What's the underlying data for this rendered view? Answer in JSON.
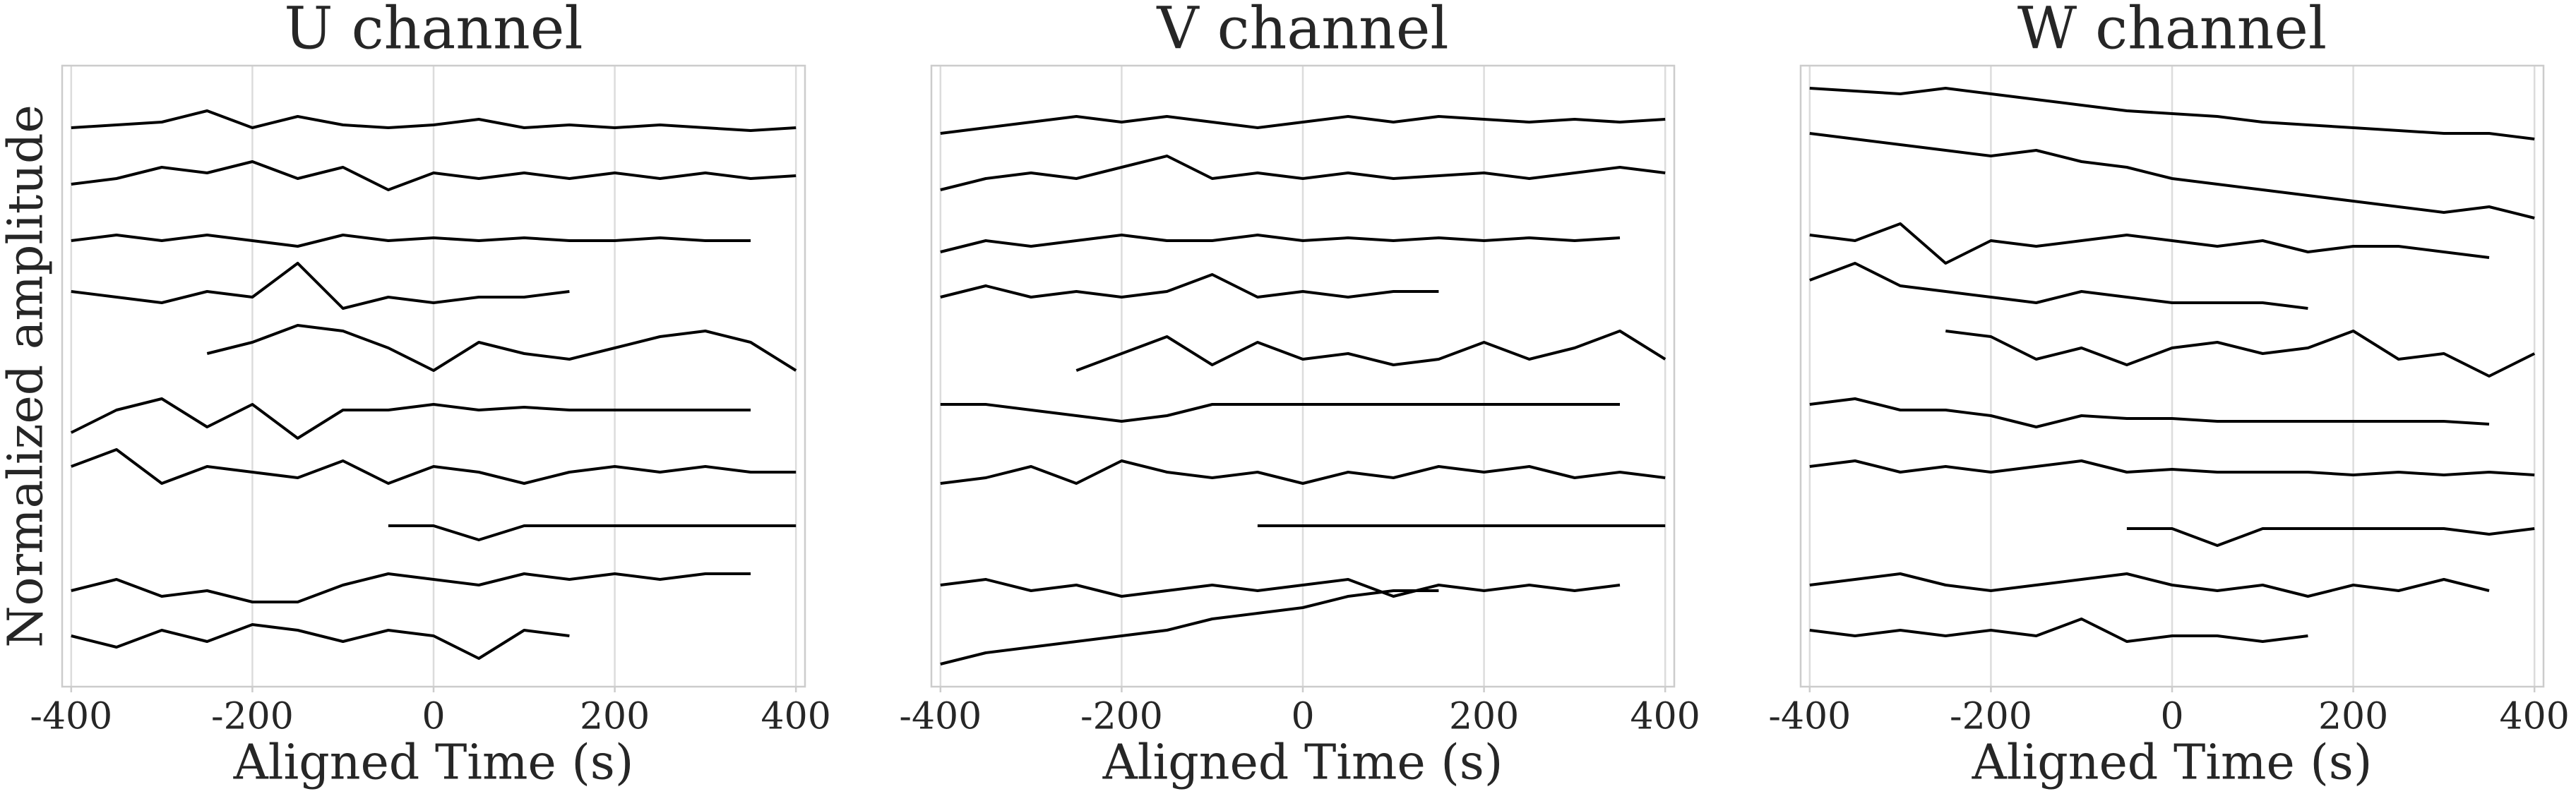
{
  "chart_data": [
    {
      "type": "line",
      "title": "U channel",
      "xlabel": "Aligned Time (s)",
      "ylabel": "Normalized amplitude",
      "color": "#000000",
      "grid": true,
      "xlim": [
        -410,
        410
      ],
      "xticks": [
        -400,
        -200,
        0,
        200,
        400
      ],
      "ylim": [
        0,
        11
      ],
      "x": [
        -400,
        -350,
        -300,
        -250,
        -200,
        -150,
        -100,
        -50,
        0,
        50,
        100,
        150,
        200,
        250,
        300,
        350,
        400
      ],
      "series": [
        {
          "values": [
            9.9,
            9.95,
            10.0,
            10.2,
            9.9,
            10.1,
            9.95,
            9.9,
            9.95,
            10.05,
            9.9,
            9.95,
            9.9,
            9.95,
            9.9,
            9.85,
            9.9
          ]
        },
        {
          "values": [
            8.9,
            9.0,
            9.2,
            9.1,
            9.3,
            9.0,
            9.2,
            8.8,
            9.1,
            9.0,
            9.1,
            9.0,
            9.1,
            9.0,
            9.1,
            9.0,
            9.05
          ]
        },
        {
          "values": [
            7.9,
            8.0,
            7.9,
            8.0,
            7.9,
            7.8,
            8.0,
            7.9,
            7.95,
            7.9,
            7.95,
            7.9,
            7.9,
            7.95,
            7.9,
            7.9,
            null
          ]
        },
        {
          "values": [
            7.0,
            6.9,
            6.8,
            7.0,
            6.9,
            7.5,
            6.7,
            6.9,
            6.8,
            6.9,
            6.9,
            7.0,
            null,
            null,
            null,
            null,
            null
          ]
        },
        {
          "values": [
            null,
            null,
            null,
            5.9,
            6.1,
            6.4,
            6.3,
            6.0,
            5.6,
            6.1,
            5.9,
            5.8,
            6.0,
            6.2,
            6.3,
            6.1,
            5.6
          ]
        },
        {
          "values": [
            4.5,
            4.9,
            5.1,
            4.6,
            5.0,
            4.4,
            4.9,
            4.9,
            5.0,
            4.9,
            4.95,
            4.9,
            4.9,
            4.9,
            4.9,
            4.9,
            null
          ]
        },
        {
          "values": [
            3.9,
            4.2,
            3.6,
            3.9,
            3.8,
            3.7,
            4.0,
            3.6,
            3.9,
            3.8,
            3.6,
            3.8,
            3.9,
            3.8,
            3.9,
            3.8,
            3.8
          ]
        },
        {
          "values": [
            null,
            null,
            null,
            null,
            null,
            null,
            null,
            2.85,
            2.85,
            2.6,
            2.85,
            2.85,
            2.85,
            2.85,
            2.85,
            2.85,
            2.85
          ]
        },
        {
          "values": [
            1.7,
            1.9,
            1.6,
            1.7,
            1.5,
            1.5,
            1.8,
            2.0,
            1.9,
            1.8,
            2.0,
            1.9,
            2.0,
            1.9,
            2.0,
            2.0,
            null
          ]
        },
        {
          "values": [
            0.9,
            0.7,
            1.0,
            0.8,
            1.1,
            1.0,
            0.8,
            1.0,
            0.9,
            0.5,
            1.0,
            0.9,
            null,
            null,
            null,
            null,
            null
          ]
        }
      ]
    },
    {
      "type": "line",
      "title": "V channel",
      "xlabel": "Aligned Time (s)",
      "color": "#000000",
      "grid": true,
      "xlim": [
        -410,
        410
      ],
      "xticks": [
        -400,
        -200,
        0,
        200,
        400
      ],
      "ylim": [
        0,
        11
      ],
      "x": [
        -400,
        -350,
        -300,
        -250,
        -200,
        -150,
        -100,
        -50,
        0,
        50,
        100,
        150,
        200,
        250,
        300,
        350,
        400
      ],
      "series": [
        {
          "values": [
            9.8,
            9.9,
            10.0,
            10.1,
            10.0,
            10.1,
            10.0,
            9.9,
            10.0,
            10.1,
            10.0,
            10.1,
            10.05,
            10.0,
            10.05,
            10.0,
            10.05
          ]
        },
        {
          "values": [
            8.8,
            9.0,
            9.1,
            9.0,
            9.2,
            9.4,
            9.0,
            9.1,
            9.0,
            9.1,
            9.0,
            9.05,
            9.1,
            9.0,
            9.1,
            9.2,
            9.1
          ]
        },
        {
          "values": [
            7.7,
            7.9,
            7.8,
            7.9,
            8.0,
            7.9,
            7.9,
            8.0,
            7.9,
            7.95,
            7.9,
            7.95,
            7.9,
            7.95,
            7.9,
            7.95,
            null
          ]
        },
        {
          "values": [
            6.9,
            7.1,
            6.9,
            7.0,
            6.9,
            7.0,
            7.3,
            6.9,
            7.0,
            6.9,
            7.0,
            7.0,
            null,
            null,
            null,
            null,
            null
          ]
        },
        {
          "values": [
            null,
            null,
            null,
            5.6,
            5.9,
            6.2,
            5.7,
            6.1,
            5.8,
            5.9,
            5.7,
            5.8,
            6.1,
            5.8,
            6.0,
            6.3,
            5.8
          ]
        },
        {
          "values": [
            5.0,
            5.0,
            4.9,
            4.8,
            4.7,
            4.8,
            5.0,
            5.0,
            5.0,
            5.0,
            5.0,
            5.0,
            5.0,
            5.0,
            5.0,
            5.0,
            null
          ]
        },
        {
          "values": [
            3.6,
            3.7,
            3.9,
            3.6,
            4.0,
            3.8,
            3.7,
            3.8,
            3.6,
            3.8,
            3.7,
            3.9,
            3.8,
            3.9,
            3.7,
            3.8,
            3.7
          ]
        },
        {
          "values": [
            null,
            null,
            null,
            null,
            null,
            null,
            null,
            2.85,
            2.85,
            2.85,
            2.85,
            2.85,
            2.85,
            2.85,
            2.85,
            2.85,
            2.85
          ]
        },
        {
          "values": [
            1.8,
            1.9,
            1.7,
            1.8,
            1.6,
            1.7,
            1.8,
            1.7,
            1.8,
            1.9,
            1.6,
            1.8,
            1.7,
            1.8,
            1.7,
            1.8,
            null
          ]
        },
        {
          "values": [
            0.4,
            0.6,
            0.7,
            0.8,
            0.9,
            1.0,
            1.2,
            1.3,
            1.4,
            1.6,
            1.7,
            1.7,
            null,
            null,
            null,
            null,
            null
          ]
        }
      ]
    },
    {
      "type": "line",
      "title": "W channel",
      "xlabel": "Aligned Time (s)",
      "color": "#000000",
      "grid": true,
      "xlim": [
        -410,
        410
      ],
      "xticks": [
        -400,
        -200,
        0,
        200,
        400
      ],
      "ylim": [
        0,
        11
      ],
      "x": [
        -400,
        -350,
        -300,
        -250,
        -200,
        -150,
        -100,
        -50,
        0,
        50,
        100,
        150,
        200,
        250,
        300,
        350,
        400
      ],
      "series": [
        {
          "values": [
            10.6,
            10.55,
            10.5,
            10.6,
            10.5,
            10.4,
            10.3,
            10.2,
            10.15,
            10.1,
            10.0,
            9.95,
            9.9,
            9.85,
            9.8,
            9.8,
            9.7
          ]
        },
        {
          "values": [
            9.8,
            9.7,
            9.6,
            9.5,
            9.4,
            9.5,
            9.3,
            9.2,
            9.0,
            8.9,
            8.8,
            8.7,
            8.6,
            8.5,
            8.4,
            8.5,
            8.3
          ]
        },
        {
          "values": [
            8.0,
            7.9,
            8.2,
            7.5,
            7.9,
            7.8,
            7.9,
            8.0,
            7.9,
            7.8,
            7.9,
            7.7,
            7.8,
            7.8,
            7.7,
            7.6,
            null
          ]
        },
        {
          "values": [
            7.2,
            7.5,
            7.1,
            7.0,
            6.9,
            6.8,
            7.0,
            6.9,
            6.8,
            6.8,
            6.8,
            6.7,
            null,
            null,
            null,
            null,
            null
          ]
        },
        {
          "values": [
            null,
            null,
            null,
            6.3,
            6.2,
            5.8,
            6.0,
            5.7,
            6.0,
            6.1,
            5.9,
            6.0,
            6.3,
            5.8,
            5.9,
            5.5,
            5.9
          ]
        },
        {
          "values": [
            5.0,
            5.1,
            4.9,
            4.9,
            4.8,
            4.6,
            4.8,
            4.75,
            4.75,
            4.7,
            4.7,
            4.7,
            4.7,
            4.7,
            4.7,
            4.65,
            null
          ]
        },
        {
          "values": [
            3.9,
            4.0,
            3.8,
            3.9,
            3.8,
            3.9,
            4.0,
            3.8,
            3.85,
            3.8,
            3.8,
            3.8,
            3.75,
            3.8,
            3.75,
            3.8,
            3.75
          ]
        },
        {
          "values": [
            null,
            null,
            null,
            null,
            null,
            null,
            null,
            2.8,
            2.8,
            2.5,
            2.8,
            2.8,
            2.8,
            2.8,
            2.8,
            2.7,
            2.8
          ]
        },
        {
          "values": [
            1.8,
            1.9,
            2.0,
            1.8,
            1.7,
            1.8,
            1.9,
            2.0,
            1.8,
            1.7,
            1.8,
            1.6,
            1.8,
            1.7,
            1.9,
            1.7,
            null
          ]
        },
        {
          "values": [
            1.0,
            0.9,
            1.0,
            0.9,
            1.0,
            0.9,
            1.2,
            0.8,
            0.9,
            0.9,
            0.8,
            0.9,
            null,
            null,
            null,
            null,
            null
          ]
        }
      ]
    }
  ]
}
